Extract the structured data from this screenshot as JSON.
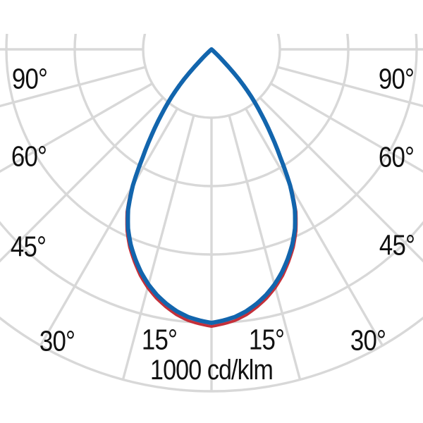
{
  "chart_data": {
    "type": "polar",
    "description": "Luminous intensity distribution curve (polar diagram)",
    "unit_label": "1000 cd/klm",
    "angle_tick_labels": {
      "left": [
        "90°",
        "60°",
        "45°",
        "30°",
        "15°"
      ],
      "right": [
        "90°",
        "60°",
        "45°",
        "30°",
        "15°"
      ]
    },
    "angle_step_deg": 15,
    "ring_values_cd_per_klm": [
      250,
      500,
      750,
      1000,
      1250
    ],
    "ring_step_cd_per_klm": 250,
    "gamma_deg": [
      0,
      2.5,
      5,
      7.5,
      10,
      12.5,
      15,
      17.5,
      20,
      22.5,
      25,
      27.5,
      30,
      32.5,
      35,
      37.5,
      40,
      42.5,
      45,
      47.5,
      50
    ],
    "series": [
      {
        "name": "curve-red",
        "color": "#c4303a",
        "intensity_cd_per_klm": [
          1010,
          1002,
          992,
          976,
          954,
          929,
          899,
          864,
          823,
          780,
          729,
          667,
          581,
          473,
          384,
          303,
          230,
          152,
          61,
          15,
          0
        ]
      },
      {
        "name": "curve-blue",
        "color": "#1265ad",
        "intensity_cd_per_klm": [
          1000,
          992,
          982,
          966,
          945,
          920,
          890,
          855,
          815,
          772,
          722,
          660,
          575,
          468,
          380,
          300,
          228,
          150,
          60,
          15,
          0
        ]
      }
    ],
    "grid_color": "#d8d8d8",
    "background": "#ffffff"
  }
}
